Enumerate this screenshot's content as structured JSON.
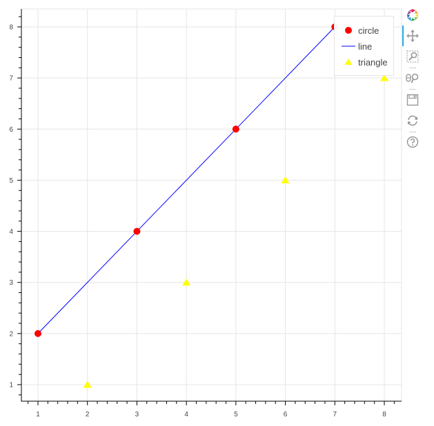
{
  "chart_data": {
    "type": "scatter",
    "title": "",
    "xlabel": "",
    "ylabel": "",
    "xlim": [
      0.65,
      8.35
    ],
    "ylim": [
      0.65,
      8.35
    ],
    "grid": true,
    "legend_position": "top_right",
    "x_ticks": [
      1,
      2,
      3,
      4,
      5,
      6,
      7,
      8
    ],
    "y_ticks": [
      1,
      2,
      3,
      4,
      5,
      6,
      7,
      8
    ],
    "series": [
      {
        "name": "circle",
        "kind": "circle",
        "color": "#ff0000",
        "x": [
          1,
          3,
          5,
          7
        ],
        "y": [
          2,
          4,
          6,
          8
        ]
      },
      {
        "name": "line",
        "kind": "line",
        "color": "#0000ff",
        "x": [
          1,
          3,
          5,
          7
        ],
        "y": [
          2,
          4,
          6,
          8
        ]
      },
      {
        "name": "triangle",
        "kind": "triangle",
        "color": "#ffff00",
        "x": [
          2,
          4,
          6,
          8
        ],
        "y": [
          1,
          3,
          5,
          7
        ]
      }
    ]
  },
  "axes": {
    "x_tick_labels": [
      "1",
      "2",
      "3",
      "4",
      "5",
      "6",
      "7",
      "8"
    ],
    "y_tick_labels": [
      "1",
      "2",
      "3",
      "4",
      "5",
      "6",
      "7",
      "8"
    ]
  },
  "legend": {
    "items": [
      {
        "label": "circle",
        "color": "#ff0000",
        "glyph": "circle"
      },
      {
        "label": "line",
        "color": "#0000ff",
        "glyph": "line"
      },
      {
        "label": "triangle",
        "color": "#ffff00",
        "glyph": "triangle"
      }
    ]
  },
  "toolbar": {
    "tools": [
      {
        "name": "bokeh-logo",
        "label": "Bokeh"
      },
      {
        "name": "pan-tool",
        "label": "Pan",
        "active": true
      },
      {
        "name": "box-zoom-tool",
        "label": "Box Zoom"
      },
      {
        "name": "wheel-zoom-tool",
        "label": "Wheel Zoom"
      },
      {
        "name": "save-tool",
        "label": "Save"
      },
      {
        "name": "reset-tool",
        "label": "Reset"
      },
      {
        "name": "help-tool",
        "label": "Help"
      }
    ]
  }
}
